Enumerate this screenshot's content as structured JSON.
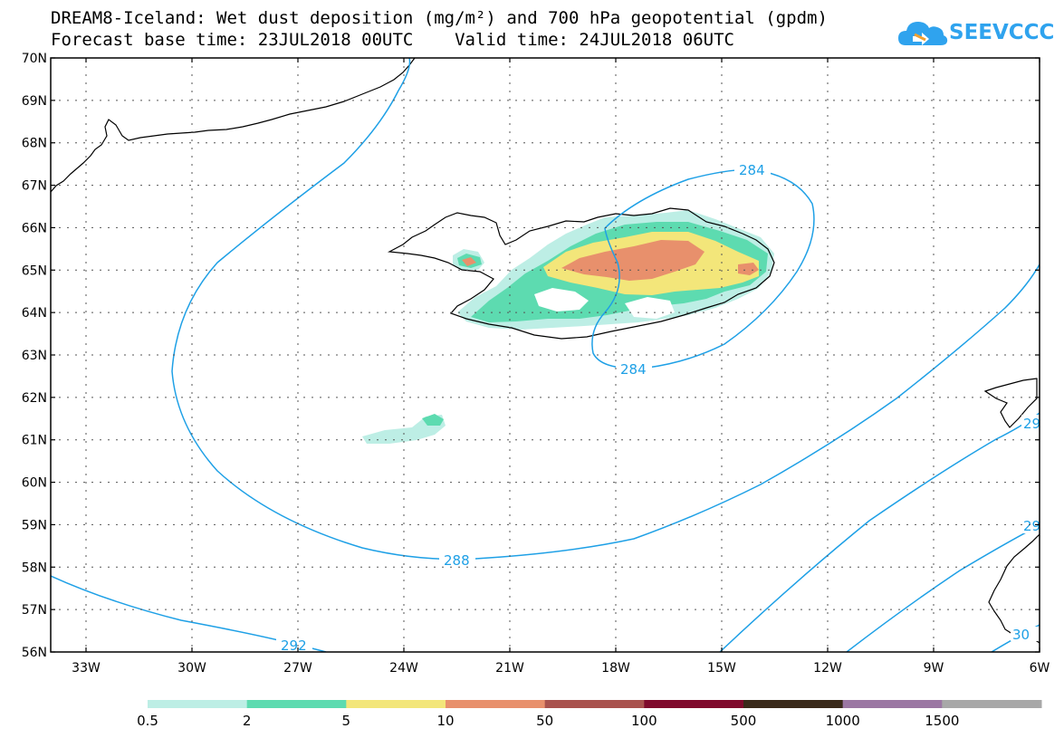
{
  "header": {
    "title_line1": "DREAM8-Iceland: Wet dust deposition (mg/m²) and 700 hPa geopotential (gpdm)",
    "title_line2": "Forecast base time: 23JUL2018 00UTC    Valid time: 24JUL2018 06UTC"
  },
  "logo": {
    "text": "SEEVCCC",
    "icon": "cloud-icon",
    "color": "#2fa3ee"
  },
  "map": {
    "lat_labels": [
      "70N",
      "69N",
      "68N",
      "67N",
      "66N",
      "65N",
      "64N",
      "63N",
      "62N",
      "61N",
      "60N",
      "59N",
      "58N",
      "57N",
      "56N"
    ],
    "lon_labels": [
      "33W",
      "30W",
      "27W",
      "24W",
      "21W",
      "18W",
      "15W",
      "12W",
      "9W",
      "6W"
    ],
    "lon_range": [
      -34,
      -6
    ],
    "lat_range": [
      56,
      70
    ],
    "contour_labels": [
      "284",
      "284",
      "288",
      "292",
      "29",
      "29",
      "30"
    ],
    "contour_color": "#1ea0e6"
  },
  "legend": {
    "labels": [
      "0.5",
      "2",
      "5",
      "10",
      "50",
      "100",
      "500",
      "1000",
      "1500"
    ],
    "colors": [
      "#bdeee5",
      "#5ddbb0",
      "#f3e67a",
      "#e8906c",
      "#a9524e",
      "#7f0a2c",
      "#3a2a1a",
      "#9b77a3",
      "#a8a8a8"
    ]
  }
}
